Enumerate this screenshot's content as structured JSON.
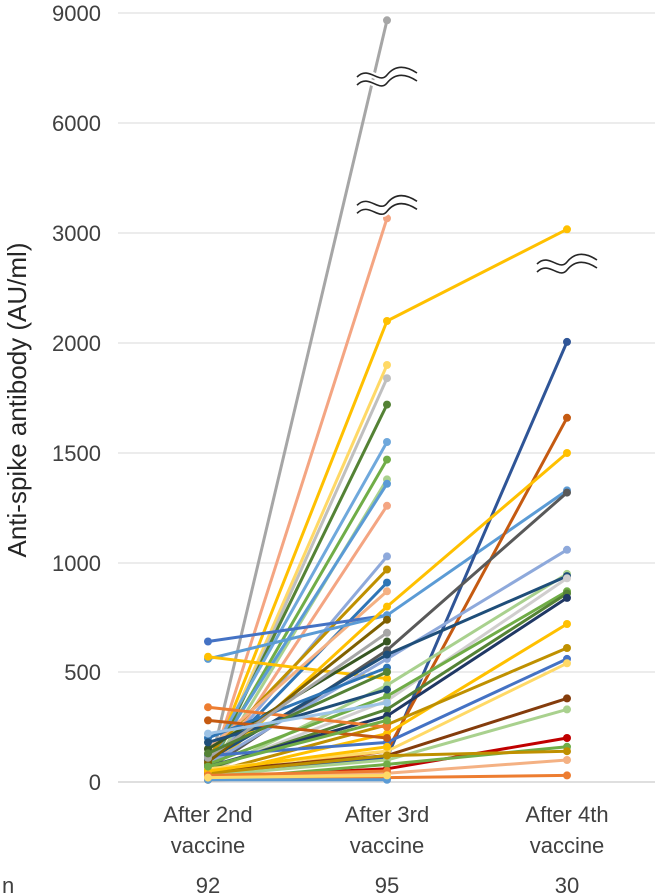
{
  "chart_data": {
    "type": "line",
    "ylabel": "Anti-spike antibody (AU/ml)",
    "xlabel": "",
    "title": "",
    "categories": [
      "After 2nd\nvaccine",
      "After 3rd\nvaccine",
      "After 4th\nvaccine"
    ],
    "n_label": "n",
    "n_values": [
      "92",
      "95",
      "30"
    ],
    "yticks": [
      "0",
      "500",
      "1000",
      "1500",
      "2000",
      "3000",
      "6000",
      "9000"
    ],
    "y_scale": "broken",
    "grid": true,
    "legend": "none",
    "axis_break_marks": [
      {
        "category": "After 3rd\nvaccine",
        "value": 7200
      },
      {
        "category": "After 3rd\nvaccine",
        "value": 3700
      },
      {
        "category": "After 4th\nvaccine",
        "value": 2700
      }
    ],
    "series": [
      {
        "color": "#A6A6A6",
        "values": [
          30,
          8800,
          null
        ]
      },
      {
        "color": "#F4A582",
        "values": [
          20,
          3400,
          null
        ]
      },
      {
        "color": "#FFC000",
        "values": [
          40,
          2200,
          3100
        ]
      },
      {
        "color": "#FFD966",
        "values": [
          30,
          1900,
          null
        ]
      },
      {
        "color": "#BFBFBF",
        "values": [
          20,
          1840,
          null
        ]
      },
      {
        "color": "#548235",
        "values": [
          50,
          1720,
          null
        ]
      },
      {
        "color": "#6FA8DC",
        "values": [
          100,
          1550,
          null
        ]
      },
      {
        "color": "#70AD47",
        "values": [
          60,
          1470,
          null
        ]
      },
      {
        "color": "#A9D18E",
        "values": [
          30,
          1380,
          null
        ]
      },
      {
        "color": "#5B9BD5",
        "values": [
          80,
          1360,
          null
        ]
      },
      {
        "color": "#F4A582",
        "values": [
          20,
          1260,
          null
        ]
      },
      {
        "color": "#8EA9DB",
        "values": [
          60,
          1030,
          null
        ]
      },
      {
        "color": "#BF9000",
        "values": [
          120,
          970,
          null
        ]
      },
      {
        "color": "#2E75B6",
        "values": [
          70,
          910,
          null
        ]
      },
      {
        "color": "#F4B183",
        "values": [
          150,
          870,
          null
        ]
      },
      {
        "color": "#4472C4",
        "values": [
          640,
          760,
          null
        ]
      },
      {
        "color": "#5B9BD5",
        "values": [
          560,
          760,
          1330
        ]
      },
      {
        "color": "#FFC000",
        "values": [
          570,
          470,
          null
        ]
      },
      {
        "color": "#2F5597",
        "values": [
          40,
          110,
          2010
        ]
      },
      {
        "color": "#C55A11",
        "values": [
          30,
          140,
          1660
        ]
      },
      {
        "color": "#FFC000",
        "values": [
          50,
          800,
          1500
        ]
      },
      {
        "color": "#595959",
        "values": [
          60,
          600,
          1320
        ]
      },
      {
        "color": "#8EA9DB",
        "values": [
          80,
          560,
          1060
        ]
      },
      {
        "color": "#A9D18E",
        "values": [
          40,
          440,
          950
        ]
      },
      {
        "color": "#1F4E79",
        "values": [
          100,
          580,
          940
        ]
      },
      {
        "color": "#D0CECE",
        "values": [
          50,
          370,
          930
        ]
      },
      {
        "color": "#70AD47",
        "values": [
          80,
          390,
          870
        ]
      },
      {
        "color": "#548235",
        "values": [
          60,
          330,
          860
        ]
      },
      {
        "color": "#203864",
        "values": [
          70,
          300,
          840
        ]
      },
      {
        "color": "#FFC000",
        "values": [
          30,
          220,
          720
        ]
      },
      {
        "color": "#BF9000",
        "values": [
          40,
          260,
          610
        ]
      },
      {
        "color": "#ED7D31",
        "values": [
          340,
          250,
          null
        ]
      },
      {
        "color": "#4472C4",
        "values": [
          120,
          180,
          560
        ]
      },
      {
        "color": "#FFD966",
        "values": [
          60,
          140,
          540
        ]
      },
      {
        "color": "#843C0C",
        "values": [
          50,
          120,
          380
        ]
      },
      {
        "color": "#A9D18E",
        "values": [
          30,
          100,
          330
        ]
      },
      {
        "color": "#C00000",
        "values": [
          20,
          60,
          200
        ]
      },
      {
        "color": "#70AD47",
        "values": [
          10,
          80,
          160
        ]
      },
      {
        "color": "#BF9000",
        "values": [
          40,
          120,
          140
        ]
      },
      {
        "color": "#F4B183",
        "values": [
          20,
          40,
          100
        ]
      },
      {
        "color": "#ED7D31",
        "values": [
          10,
          20,
          30
        ]
      },
      {
        "color": "#375623",
        "values": [
          150,
          640,
          null
        ]
      },
      {
        "color": "#2E75B6",
        "values": [
          200,
          520,
          null
        ]
      },
      {
        "color": "#1F4E79",
        "values": [
          180,
          420,
          null
        ]
      },
      {
        "color": "#7F6000",
        "values": [
          90,
          740,
          null
        ]
      },
      {
        "color": "#A6A6A6",
        "values": [
          110,
          680,
          null
        ]
      },
      {
        "color": "#C55A11",
        "values": [
          280,
          200,
          null
        ]
      },
      {
        "color": "#548235",
        "values": [
          130,
          500,
          null
        ]
      },
      {
        "color": "#9DC3E6",
        "values": [
          220,
          360,
          null
        ]
      },
      {
        "color": "#FFC000",
        "values": [
          50,
          160,
          null
        ]
      },
      {
        "color": "#ED7D31",
        "values": [
          30,
          50,
          null
        ]
      },
      {
        "color": "#70AD47",
        "values": [
          70,
          280,
          null
        ]
      },
      {
        "color": "#5B9BD5",
        "values": [
          10,
          10,
          null
        ]
      },
      {
        "color": "#FFD966",
        "values": [
          20,
          30,
          null
        ]
      }
    ]
  }
}
